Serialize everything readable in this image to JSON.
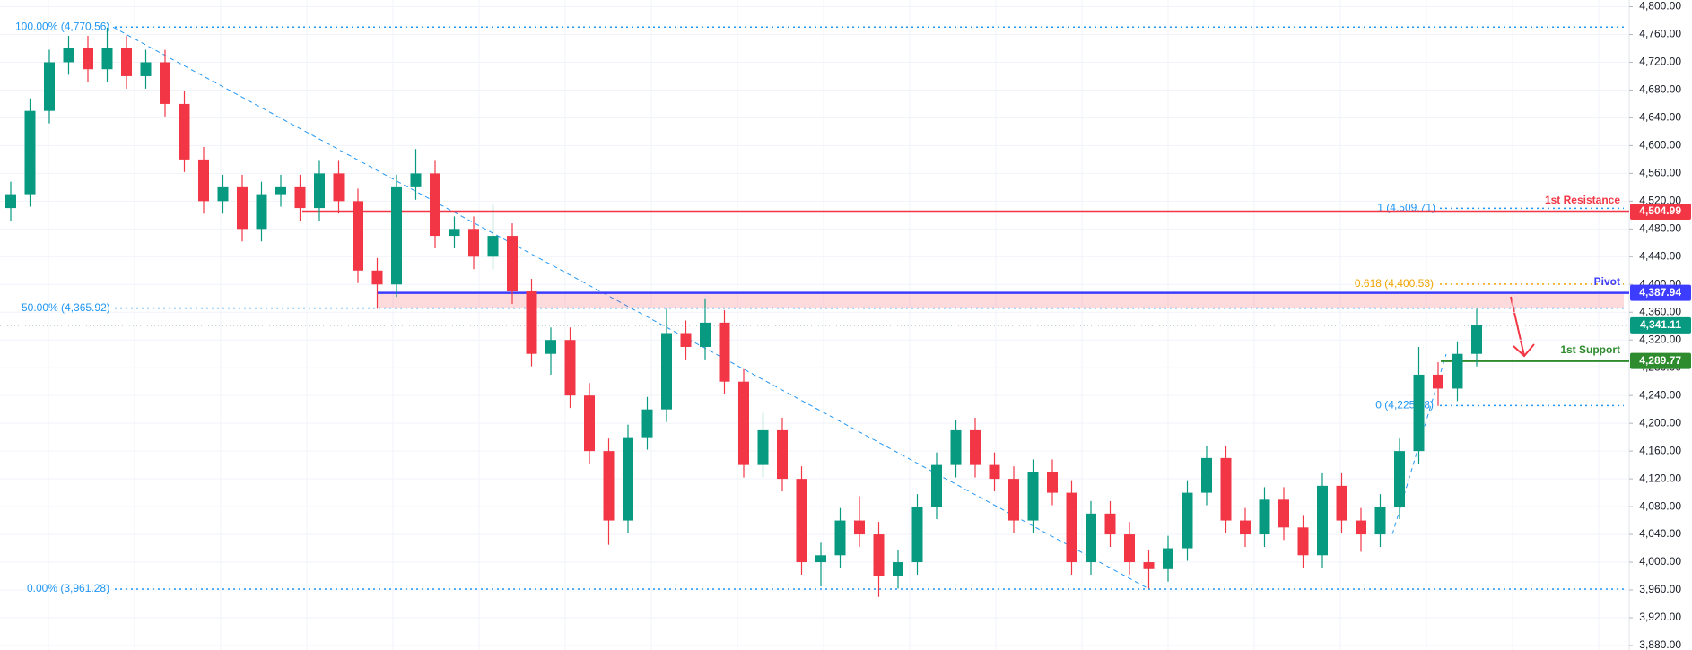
{
  "chart_data": {
    "type": "candlestick",
    "up_color": "#089981",
    "down_color": "#f23645",
    "open": [
      4510,
      4530,
      4650,
      4720,
      4740,
      4710,
      4740,
      4700,
      4720,
      4660,
      4580,
      4520,
      4540,
      4480,
      4530,
      4540,
      4510,
      4560,
      4520,
      4420,
      4400,
      4540,
      4560,
      4470,
      4480,
      4440,
      4470,
      4390,
      4300,
      4320,
      4240,
      4160,
      4060,
      4180,
      4220,
      4330,
      4310,
      4345,
      4260,
      4140,
      4190,
      4120,
      4000,
      4010,
      4060,
      4040,
      3980,
      4000,
      4080,
      4140,
      4190,
      4140,
      4120,
      4060,
      4130,
      4100,
      4000,
      4070,
      4040,
      4000,
      3990,
      4020,
      4100,
      4150,
      4060,
      4040,
      4090,
      4050,
      4010,
      4110,
      4060,
      4040,
      4080,
      4160,
      4270,
      4250,
      4300
    ],
    "high": [
      4548,
      4668,
      4738,
      4758,
      4758,
      4770,
      4758,
      4738,
      4738,
      4678,
      4598,
      4558,
      4558,
      4548,
      4558,
      4558,
      4578,
      4578,
      4538,
      4438,
      4558,
      4595,
      4578,
      4498,
      4498,
      4515,
      4488,
      4408,
      4338,
      4338,
      4258,
      4178,
      4198,
      4238,
      4365,
      4348,
      4380,
      4363,
      4278,
      4215,
      4208,
      4138,
      4028,
      4078,
      4095,
      4058,
      4018,
      4098,
      4158,
      4205,
      4208,
      4158,
      4138,
      4148,
      4148,
      4118,
      4088,
      4088,
      4058,
      4018,
      4038,
      4118,
      4168,
      4168,
      4078,
      4108,
      4108,
      4068,
      4128,
      4128,
      4078,
      4098,
      4178,
      4310,
      4288,
      4318,
      4365
    ],
    "low": [
      4492,
      4512,
      4632,
      4702,
      4692,
      4692,
      4682,
      4682,
      4642,
      4562,
      4502,
      4502,
      4462,
      4462,
      4512,
      4492,
      4492,
      4502,
      4402,
      4365,
      4382,
      4522,
      4452,
      4452,
      4422,
      4422,
      4372,
      4282,
      4270,
      4222,
      4142,
      4025,
      4042,
      4162,
      4202,
      4292,
      4292,
      4242,
      4122,
      4122,
      4102,
      3982,
      3965,
      3992,
      4022,
      3950,
      3962,
      3982,
      4062,
      4122,
      4122,
      4102,
      4042,
      4042,
      4082,
      3982,
      3982,
      4022,
      3982,
      3962,
      3972,
      4002,
      4082,
      4042,
      4022,
      4022,
      4032,
      3992,
      3992,
      4042,
      4015,
      4022,
      4062,
      4142,
      4225,
      4232,
      4282
    ],
    "close": [
      4530,
      4650,
      4720,
      4740,
      4710,
      4740,
      4700,
      4720,
      4660,
      4580,
      4520,
      4540,
      4480,
      4530,
      4540,
      4510,
      4560,
      4520,
      4420,
      4400,
      4540,
      4560,
      4470,
      4480,
      4440,
      4470,
      4390,
      4300,
      4320,
      4240,
      4160,
      4060,
      4180,
      4220,
      4330,
      4310,
      4345,
      4260,
      4140,
      4190,
      4120,
      4000,
      4010,
      4060,
      4040,
      3980,
      4000,
      4080,
      4140,
      4190,
      4140,
      4120,
      4060,
      4130,
      4100,
      4000,
      4070,
      4040,
      4000,
      3990,
      4020,
      4100,
      4150,
      4060,
      4040,
      4090,
      4050,
      4010,
      4110,
      4060,
      4040,
      4080,
      4160,
      4270,
      4250,
      4300,
      4341.11
    ],
    "ylim": [
      3873.5,
      4809.7
    ],
    "yticks": [
      {
        "value": 3880,
        "label": "3,880.00"
      },
      {
        "value": 3920,
        "label": "3,920.00"
      },
      {
        "value": 3960,
        "label": "3,960.00"
      },
      {
        "value": 4000,
        "label": "4,000.00"
      },
      {
        "value": 4040,
        "label": "4,040.00"
      },
      {
        "value": 4080,
        "label": "4,080.00"
      },
      {
        "value": 4120,
        "label": "4,120.00"
      },
      {
        "value": 4160,
        "label": "4,160.00"
      },
      {
        "value": 4200,
        "label": "4,200.00"
      },
      {
        "value": 4240,
        "label": "4,240.00"
      },
      {
        "value": 4280,
        "label": "4,280.00"
      },
      {
        "value": 4320,
        "label": "4,320.00"
      },
      {
        "value": 4360,
        "label": "4,360.00"
      },
      {
        "value": 4400,
        "label": "4,400.00"
      },
      {
        "value": 4440,
        "label": "4,440.00"
      },
      {
        "value": 4480,
        "label": "4,480.00"
      },
      {
        "value": 4520,
        "label": "4,520.00"
      },
      {
        "value": 4560,
        "label": "4,560.00"
      },
      {
        "value": 4600,
        "label": "4,600.00"
      },
      {
        "value": 4640,
        "label": "4,640.00"
      },
      {
        "value": 4680,
        "label": "4,680.00"
      },
      {
        "value": 4720,
        "label": "4,720.00"
      },
      {
        "value": 4760,
        "label": "4,760.00"
      },
      {
        "value": 4800,
        "label": "4,800.00"
      }
    ],
    "grid": true,
    "fib_levels": [
      {
        "value": 4770.56,
        "label": "100.00% (4,770.56)",
        "color": "#2196f3"
      },
      {
        "value": 4365.92,
        "label": "50.00% (4,365.92)",
        "color": "#2196f3"
      },
      {
        "value": 3961.28,
        "label": "0.00% (3,961.28)",
        "color": "#2196f3"
      },
      {
        "value": 4509.71,
        "label": "1 (4,509.71)",
        "color": "#2196f3"
      },
      {
        "value": 4400.53,
        "label": "0.618 (4,400.53)",
        "color": "#f0a500"
      },
      {
        "value": 4225.58,
        "label": "0 (4,225.58)",
        "color": "#2196f3"
      }
    ],
    "levels": [
      {
        "name": "1st Resistance",
        "value": 4504.99,
        "label": "4,504.99",
        "color": "#f23645"
      },
      {
        "name": "Pivot",
        "value": 4387.94,
        "label": "4,387.94",
        "color": "#3d3dff"
      },
      {
        "name": "1st Support",
        "value": 4289.77,
        "label": "4,289.77",
        "color": "#2e8b2e"
      }
    ],
    "current_price": {
      "value": 4341.11,
      "label": "4,341.11",
      "color": "#089981"
    }
  }
}
